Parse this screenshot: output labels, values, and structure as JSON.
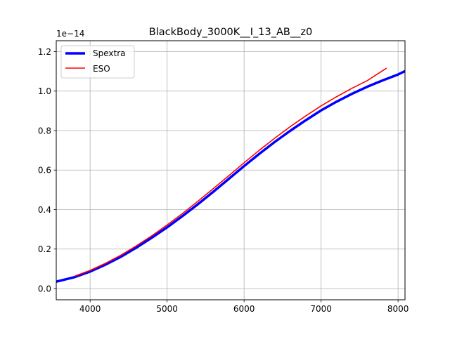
{
  "chart_data": {
    "type": "line",
    "title": "BlackBody_3000K__I_13_AB__z0",
    "xlabel": "",
    "ylabel": "",
    "offset_text": "1e−14",
    "xlim": [
      3560,
      8090
    ],
    "ylim": [
      -0.057,
      1.255
    ],
    "y_scale_factor": "1e-14",
    "x_ticks": [
      4000,
      5000,
      6000,
      7000,
      8000
    ],
    "x_tick_labels": [
      "4000",
      "5000",
      "6000",
      "7000",
      "8000"
    ],
    "y_ticks": [
      0.0,
      0.2,
      0.4,
      0.6,
      0.8,
      1.0,
      1.2
    ],
    "y_tick_labels": [
      "0.0",
      "0.2",
      "0.4",
      "0.6",
      "0.8",
      "1.0",
      "1.2"
    ],
    "grid": true,
    "legend_position": "upper-left",
    "series": [
      {
        "name": "Spextra",
        "color": "#0000ff",
        "x": [
          3560,
          3800,
          4000,
          4200,
          4400,
          4600,
          4800,
          5000,
          5200,
          5400,
          5600,
          5800,
          6000,
          6200,
          6400,
          6600,
          6800,
          7000,
          7200,
          7400,
          7600,
          7800,
          8000,
          8090
        ],
        "y": [
          0.035,
          0.058,
          0.086,
          0.121,
          0.161,
          0.207,
          0.257,
          0.31,
          0.367,
          0.427,
          0.49,
          0.555,
          0.62,
          0.683,
          0.743,
          0.799,
          0.852,
          0.902,
          0.946,
          0.986,
          1.022,
          1.054,
          1.084,
          1.101
        ]
      },
      {
        "name": "ESO",
        "color": "#ff0000",
        "x": [
          3800,
          4000,
          4200,
          4400,
          4600,
          4800,
          5000,
          5200,
          5400,
          5600,
          5800,
          6000,
          6200,
          6400,
          6600,
          6800,
          7000,
          7200,
          7400,
          7600,
          7850
        ],
        "y": [
          0.063,
          0.092,
          0.128,
          0.169,
          0.216,
          0.267,
          0.322,
          0.38,
          0.442,
          0.506,
          0.571,
          0.637,
          0.701,
          0.762,
          0.82,
          0.874,
          0.925,
          0.971,
          1.014,
          1.053,
          1.116
        ]
      }
    ]
  }
}
